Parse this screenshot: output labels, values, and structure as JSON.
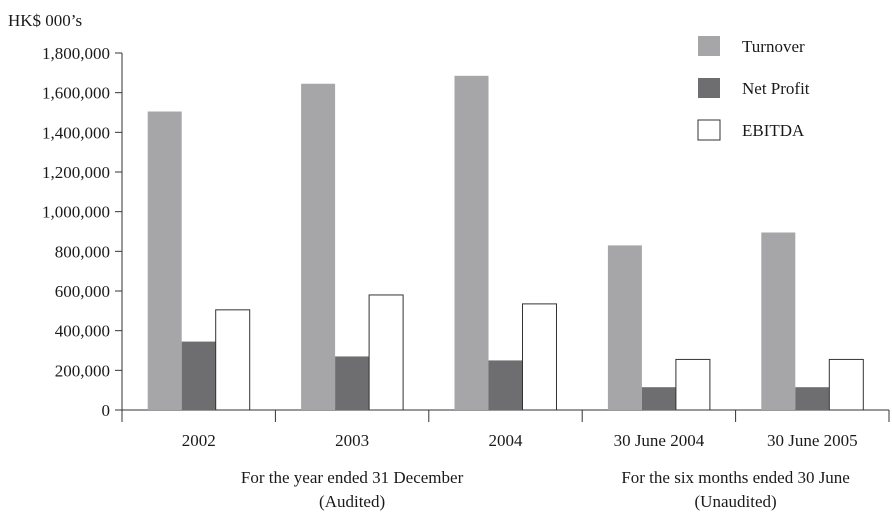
{
  "chart_data": {
    "type": "bar",
    "unit_label": "HK$ 000’s",
    "title": "",
    "xlabel": "",
    "ylabel": "",
    "categories": [
      "2002",
      "2003",
      "2004",
      "30 June 2004",
      "30 June 2005"
    ],
    "groups": [
      {
        "line1": "For the year ended 31 December",
        "line2": "(Audited)",
        "span": [
          0,
          2
        ]
      },
      {
        "line1": "For the six months ended 30 June",
        "line2": "(Unaudited)",
        "span": [
          3,
          4
        ]
      }
    ],
    "series": [
      {
        "name": "Turnover",
        "color": "#a6a6a8",
        "values": [
          1505000,
          1645000,
          1685000,
          830000,
          895000
        ]
      },
      {
        "name": "Net Profit",
        "color": "#6e6e70",
        "values": [
          345000,
          270000,
          250000,
          115000,
          115000
        ]
      },
      {
        "name": "EBITDA",
        "color": "#ffffff",
        "values": [
          505000,
          580000,
          535000,
          255000,
          255000
        ]
      }
    ],
    "ylim": [
      0,
      1800000
    ],
    "yticks": [
      0,
      200000,
      400000,
      600000,
      800000,
      1000000,
      1200000,
      1400000,
      1600000,
      1800000
    ],
    "ytick_labels": [
      "0",
      "200,000",
      "400,000",
      "600,000",
      "800,000",
      "1,000,000",
      "1,200,000",
      "1,400,000",
      "1,600,000",
      "1,800,000"
    ],
    "grid": false,
    "legend_position": "top-right"
  }
}
